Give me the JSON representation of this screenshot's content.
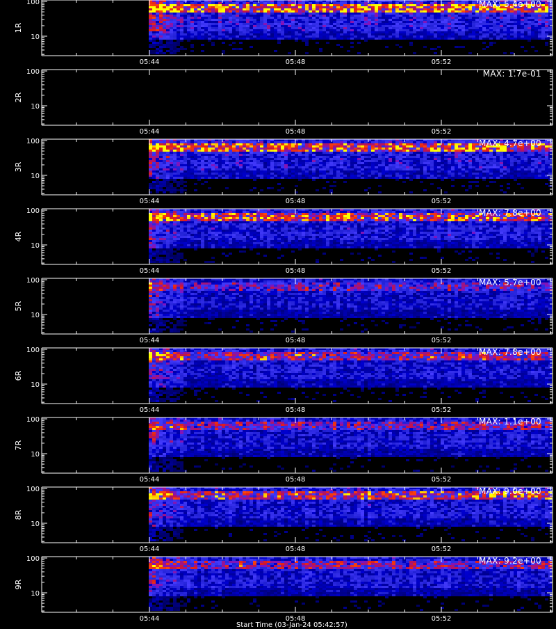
{
  "chart_data": {
    "type": "heatmap",
    "x_ticks": [
      "05:44",
      "05:48",
      "05:52"
    ],
    "y_ticks": [
      "100",
      "10"
    ],
    "xlabel": "Start Time (03-Jan-24 05:42:57)",
    "data_start": "05:44",
    "colormap": [
      "#000000",
      "#0000b0",
      "#3a3cff",
      "#8a2be2",
      "#ff1e1e",
      "#ffff00"
    ],
    "panels": [
      {
        "ylabel": "1R",
        "max": "MAX: 5.4e+00",
        "intensity": 0.9,
        "band_hot": 0.85,
        "empty": false,
        "top_cropped": true
      },
      {
        "ylabel": "2R",
        "max": "MAX: 1.7e-01",
        "intensity": 0.0,
        "band_hot": 0.0,
        "empty": true
      },
      {
        "ylabel": "3R",
        "max": "MAX: 4.7e+00",
        "intensity": 0.8,
        "band_hot": 0.8,
        "empty": false
      },
      {
        "ylabel": "4R",
        "max": "MAX: 7.8e+00",
        "intensity": 0.75,
        "band_hot": 0.7,
        "empty": false
      },
      {
        "ylabel": "5R",
        "max": "MAX: 5.7e+00",
        "intensity": 0.55,
        "band_hot": 0.3,
        "empty": false
      },
      {
        "ylabel": "6R",
        "max": "MAX: 7.8e+00",
        "intensity": 0.65,
        "band_hot": 0.55,
        "empty": false
      },
      {
        "ylabel": "7R",
        "max": "MAX: 1.1e+00",
        "intensity": 0.6,
        "band_hot": 0.4,
        "empty": false
      },
      {
        "ylabel": "8R",
        "max": "MAX: 9.0e+00",
        "intensity": 0.7,
        "band_hot": 0.65,
        "empty": false
      },
      {
        "ylabel": "9R",
        "max": "MAX: 9.2e+00",
        "intensity": 0.6,
        "band_hot": 0.4,
        "empty": false
      }
    ]
  }
}
